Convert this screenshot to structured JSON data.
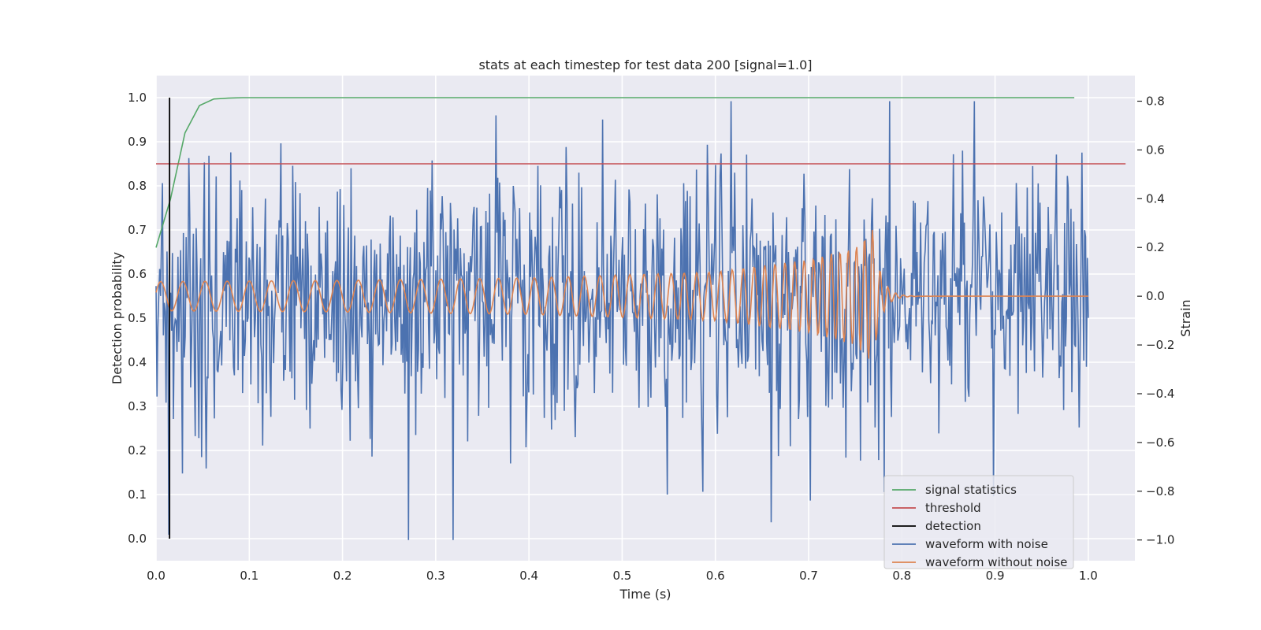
{
  "chart_data": {
    "type": "line",
    "title": "stats at each timestep for test data 200 [signal=1.0]",
    "xlabel": "Time (s)",
    "ylabel": "Detection probability",
    "y2label": "Strain",
    "xlim": [
      0.0,
      1.05
    ],
    "ylim": [
      -0.05,
      1.05
    ],
    "y2lim": [
      -1.085,
      0.905
    ],
    "xticks": [
      "0.0",
      "0.1",
      "0.2",
      "0.3",
      "0.4",
      "0.5",
      "0.6",
      "0.7",
      "0.8",
      "0.9",
      "1.0"
    ],
    "yticks": [
      "0.0",
      "0.1",
      "0.2",
      "0.3",
      "0.4",
      "0.5",
      "0.6",
      "0.7",
      "0.8",
      "0.9",
      "1.0"
    ],
    "y2ticks": [
      "−1.0",
      "−0.8",
      "−0.6",
      "−0.4",
      "−0.2",
      "0.0",
      "0.2",
      "0.4",
      "0.6",
      "0.8"
    ],
    "grid": true,
    "legend_position": "lower right",
    "legend": [
      {
        "label": "signal statistics",
        "color": "#55a868"
      },
      {
        "label": "threshold",
        "color": "#c44e52"
      },
      {
        "label": "detection",
        "color": "#000000"
      },
      {
        "label": "waveform with noise",
        "color": "#4c72b0"
      },
      {
        "label": "waveform without noise",
        "color": "#dd8452"
      }
    ],
    "signal_statistics": {
      "axis": "left",
      "x": [
        0.0,
        0.0155,
        0.031,
        0.0465,
        0.062,
        0.0775,
        0.093,
        0.12,
        0.2,
        0.4,
        0.6,
        0.8,
        0.985
      ],
      "y": [
        0.66,
        0.77,
        0.92,
        0.982,
        0.997,
        0.999,
        1.0,
        1.0,
        1.0,
        1.0,
        1.0,
        1.0,
        1.0
      ]
    },
    "threshold": {
      "axis": "left",
      "x": [
        0.0,
        1.04
      ],
      "y": [
        0.85,
        0.85
      ]
    },
    "detection": {
      "axis": "left",
      "x": [
        0.0145,
        0.0145
      ],
      "y": [
        0.0,
        1.0
      ]
    },
    "waveform_without_noise": {
      "axis": "right",
      "description_points": {
        "x": [
          0.0,
          0.2,
          0.4,
          0.6,
          0.7,
          0.75,
          0.77,
          0.79,
          0.8,
          1.0
        ],
        "amplitude": [
          0.06,
          0.065,
          0.075,
          0.1,
          0.15,
          0.2,
          0.28,
          0.05,
          0.0,
          0.0
        ]
      },
      "f0": 42,
      "f1": 120,
      "t_merge": 0.77
    },
    "waveform_with_noise": {
      "axis": "right",
      "samples": 1024,
      "noise_sigma": 0.26,
      "y_min": -1.0,
      "y_max": 0.8
    }
  },
  "colors": {
    "plot_bg": "#eaeaf2",
    "grid": "#ffffff",
    "signal": "#55a868",
    "threshold": "#c44e52",
    "detection": "#000000",
    "noisy": "#4c72b0",
    "clean": "#dd8452"
  }
}
